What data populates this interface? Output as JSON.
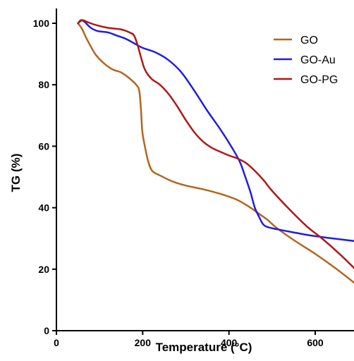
{
  "chart_data": {
    "type": "line",
    "title": "",
    "xlabel": "Temperature (°C)",
    "ylabel": "TG (%)",
    "xlim": [
      0,
      700
    ],
    "ylim": [
      0,
      105
    ],
    "xticks": [
      0,
      200,
      400,
      600
    ],
    "yticks": [
      0,
      20,
      40,
      60,
      80,
      100
    ],
    "grid": false,
    "legend_position": "top-right",
    "series": [
      {
        "name": "GO",
        "color": "#b5651d",
        "points": [
          [
            50,
            100
          ],
          [
            60,
            98
          ],
          [
            70,
            95
          ],
          [
            90,
            90
          ],
          [
            110,
            87
          ],
          [
            130,
            85
          ],
          [
            150,
            84
          ],
          [
            170,
            82
          ],
          [
            185,
            80
          ],
          [
            192,
            78
          ],
          [
            196,
            72
          ],
          [
            199,
            65
          ],
          [
            205,
            60
          ],
          [
            213,
            55
          ],
          [
            222,
            52
          ],
          [
            240,
            50.5
          ],
          [
            270,
            48.5
          ],
          [
            300,
            47.2
          ],
          [
            340,
            46
          ],
          [
            380,
            44.5
          ],
          [
            420,
            42.5
          ],
          [
            450,
            40
          ],
          [
            470,
            38
          ],
          [
            490,
            36
          ],
          [
            510,
            33.5
          ],
          [
            550,
            29.5
          ],
          [
            600,
            25
          ],
          [
            650,
            20
          ],
          [
            700,
            14.5
          ]
        ]
      },
      {
        "name": "GO-Au",
        "color": "#1f1fe0",
        "points": [
          [
            50,
            100
          ],
          [
            57,
            101
          ],
          [
            65,
            100.5
          ],
          [
            80,
            98.5
          ],
          [
            95,
            97.5
          ],
          [
            120,
            97
          ],
          [
            140,
            96
          ],
          [
            160,
            95
          ],
          [
            180,
            93.5
          ],
          [
            200,
            92
          ],
          [
            230,
            90.5
          ],
          [
            260,
            88
          ],
          [
            290,
            84
          ],
          [
            320,
            78
          ],
          [
            350,
            71.5
          ],
          [
            380,
            65.5
          ],
          [
            405,
            60
          ],
          [
            425,
            55
          ],
          [
            438,
            50
          ],
          [
            450,
            45
          ],
          [
            460,
            40
          ],
          [
            470,
            37
          ],
          [
            480,
            34.5
          ],
          [
            495,
            33.5
          ],
          [
            530,
            32.5
          ],
          [
            580,
            31.2
          ],
          [
            630,
            30.2
          ],
          [
            700,
            29
          ]
        ]
      },
      {
        "name": "GO-PG",
        "color": "#b01818",
        "points": [
          [
            50,
            100
          ],
          [
            60,
            101
          ],
          [
            70,
            100.5
          ],
          [
            90,
            99.5
          ],
          [
            120,
            98.5
          ],
          [
            150,
            98
          ],
          [
            170,
            97
          ],
          [
            180,
            96
          ],
          [
            188,
            93
          ],
          [
            196,
            89
          ],
          [
            205,
            85
          ],
          [
            220,
            82
          ],
          [
            240,
            80
          ],
          [
            260,
            77
          ],
          [
            280,
            73
          ],
          [
            300,
            68.5
          ],
          [
            320,
            64.5
          ],
          [
            340,
            61.5
          ],
          [
            360,
            59.5
          ],
          [
            380,
            58.2
          ],
          [
            400,
            57
          ],
          [
            420,
            56
          ],
          [
            440,
            54.5
          ],
          [
            460,
            52
          ],
          [
            480,
            49
          ],
          [
            500,
            45.5
          ],
          [
            540,
            39.5
          ],
          [
            580,
            34
          ],
          [
            620,
            29.5
          ],
          [
            660,
            24.5
          ],
          [
            700,
            19
          ]
        ]
      }
    ]
  }
}
